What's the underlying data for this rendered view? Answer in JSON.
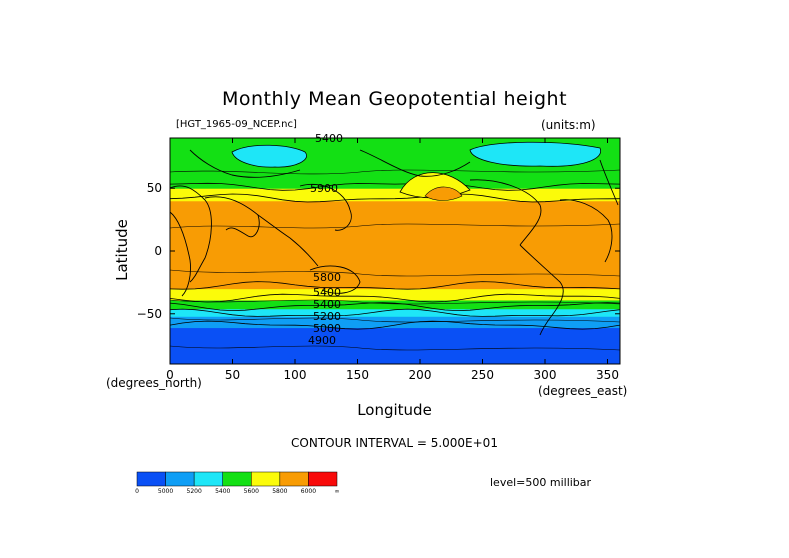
{
  "chart_data": {
    "type": "heatmap",
    "title": "Monthly Mean Geopotential height",
    "file_label": "[HGT_1965-09_NCEP.nc]",
    "units_label": "(units:m)",
    "xlabel": "Longitude",
    "ylabel": "Latitude",
    "x_unit": "(degrees_east)",
    "y_unit": "(degrees_north)",
    "xlim": [
      0,
      360
    ],
    "ylim": [
      -90,
      90
    ],
    "x_ticks": [
      "0",
      "50",
      "100",
      "150",
      "200",
      "250",
      "300",
      "350"
    ],
    "x_tick_values": [
      0,
      50,
      100,
      150,
      200,
      250,
      300,
      350
    ],
    "y_ticks": [
      "50",
      "0",
      "−50"
    ],
    "y_tick_values": [
      50,
      0,
      -50
    ],
    "contour_interval": "CONTOUR INTERVAL = 5.000E+01",
    "level_label": "level=500 millibar",
    "contour_labels": [
      "5400",
      "5900",
      "5800",
      "5400",
      "5400",
      "5200",
      "5000",
      "4900"
    ],
    "colorbar": {
      "tick_labels": [
        "0",
        "5000",
        "5200",
        "5400",
        "5600",
        "5800",
        "6000",
        "∞"
      ],
      "colors": [
        "#0a50f5",
        "#0f9ef5",
        "#1ee6f7",
        "#13e014",
        "#fbfb0a",
        "#f89c04",
        "#f80a0a"
      ]
    },
    "bands": [
      {
        "range": "4900-5000",
        "color": "#0a50f5",
        "lat_from": -90,
        "lat_to": -59
      },
      {
        "range": "5000-5200",
        "color": "#0f9ef5",
        "lat_from": -59,
        "lat_to": -50
      },
      {
        "range": "5200-5400",
        "color": "#1ee6f7",
        "lat_from": -50,
        "lat_to": -44
      },
      {
        "range": "5400-5600",
        "color": "#13e014",
        "lat_from": -44,
        "lat_to": -37
      },
      {
        "range": "5600-5800",
        "color": "#fbfb0a",
        "lat_from": -37,
        "lat_to": -28
      },
      {
        "range": "5800-6000",
        "color": "#f89c04",
        "lat_from": -28,
        "lat_to": 42
      },
      {
        "range": "5600-5800",
        "color": "#fbfb0a",
        "lat_from": 42,
        "lat_to": 52
      },
      {
        "range": "5400-5600",
        "color": "#13e014",
        "lat_from": 52,
        "lat_to": 90
      }
    ]
  }
}
